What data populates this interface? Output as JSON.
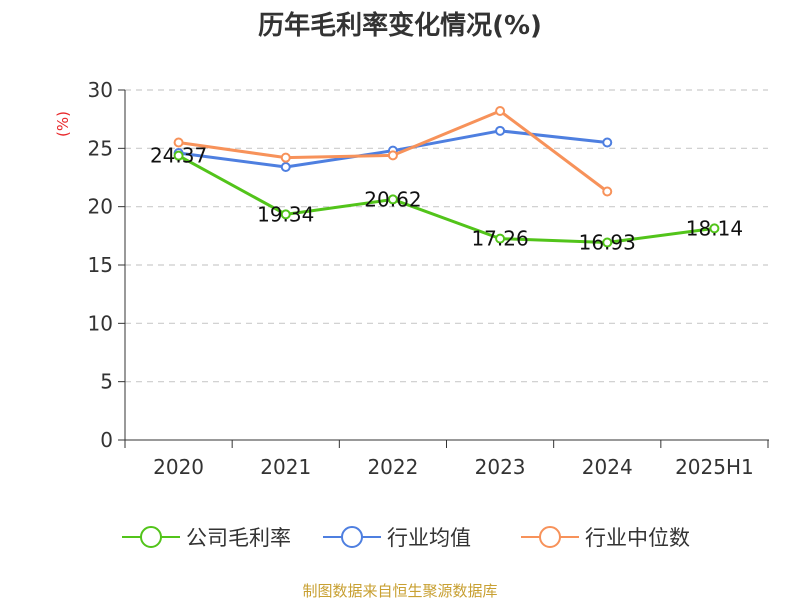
{
  "chart_data": {
    "type": "line",
    "title": "历年毛利率变化情况(%)",
    "ylabel": "(%)",
    "categories": [
      "2020",
      "2021",
      "2022",
      "2023",
      "2024",
      "2025H1"
    ],
    "ylim": [
      0,
      30
    ],
    "yticks": [
      0,
      5,
      10,
      15,
      20,
      25,
      30
    ],
    "grid": true,
    "legend_position": "bottom",
    "series": [
      {
        "name": "公司毛利率",
        "color": "#52c41a",
        "values": [
          24.37,
          19.34,
          20.62,
          17.26,
          16.93,
          18.14
        ],
        "labels": [
          "24.37",
          "19.34",
          "20.62",
          "17.26",
          "16.93",
          "18.14"
        ]
      },
      {
        "name": "行业均值",
        "color": "#4e7fe0",
        "values": [
          24.6,
          23.4,
          24.8,
          26.5,
          25.5,
          null
        ]
      },
      {
        "name": "行业中位数",
        "color": "#f7925a",
        "values": [
          25.5,
          24.2,
          24.4,
          28.2,
          21.3,
          null
        ]
      }
    ],
    "source": "制图数据来自恒生聚源数据库"
  }
}
